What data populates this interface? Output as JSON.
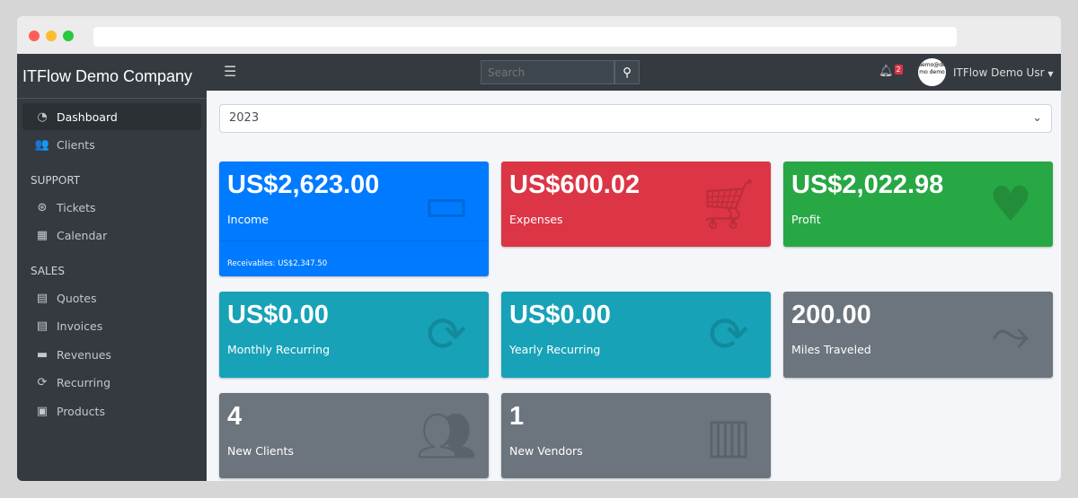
{
  "company": "ITFlow Demo Company",
  "sidebar": {
    "items": [
      {
        "label": "Dashboard",
        "icon": "gauge-icon",
        "glyph": "◔"
      },
      {
        "label": "Clients",
        "icon": "users-icon",
        "glyph": "👥"
      }
    ],
    "support_header": "SUPPORT",
    "support": [
      {
        "label": "Tickets",
        "icon": "life-ring-icon",
        "glyph": "⊛"
      },
      {
        "label": "Calendar",
        "icon": "calendar-icon",
        "glyph": "▦"
      }
    ],
    "sales_header": "SALES",
    "sales": [
      {
        "label": "Quotes",
        "icon": "file-icon",
        "glyph": "▤"
      },
      {
        "label": "Invoices",
        "icon": "invoice-icon",
        "glyph": "▤"
      },
      {
        "label": "Revenues",
        "icon": "credit-card-icon",
        "glyph": "▬"
      },
      {
        "label": "Recurring",
        "icon": "sync-icon",
        "glyph": "⟳"
      },
      {
        "label": "Products",
        "icon": "box-icon",
        "glyph": "▣"
      }
    ]
  },
  "topbar": {
    "search_placeholder": "Search",
    "notifications": "2",
    "avatar_text": "demo@demo demo",
    "user": "ITFlow Demo Usr"
  },
  "year": "2023",
  "cards": [
    {
      "value": "US$2,623.00",
      "label": "Income",
      "footer": "Receivables: US$2,347.50",
      "color": "#007bff",
      "icon": "credit-card-icon"
    },
    {
      "value": "US$600.02",
      "label": "Expenses",
      "color": "#dc3545",
      "icon": "shopping-cart-icon"
    },
    {
      "value": "US$2,022.98",
      "label": "Profit",
      "color": "#28a745",
      "icon": "heart-icon"
    },
    {
      "value": "US$0.00",
      "label": "Monthly Recurring",
      "color": "#17a2b8",
      "icon": "sync-icon"
    },
    {
      "value": "US$0.00",
      "label": "Yearly Recurring",
      "color": "#17a2b8",
      "icon": "sync-icon"
    },
    {
      "value": "200.00",
      "label": "Miles Traveled",
      "color": "#6c757d",
      "icon": "route-icon"
    },
    {
      "value": "4",
      "label": "New Clients",
      "color": "#6c757d",
      "icon": "users-icon"
    },
    {
      "value": "1",
      "label": "New Vendors",
      "color": "#6c757d",
      "icon": "building-icon"
    }
  ]
}
